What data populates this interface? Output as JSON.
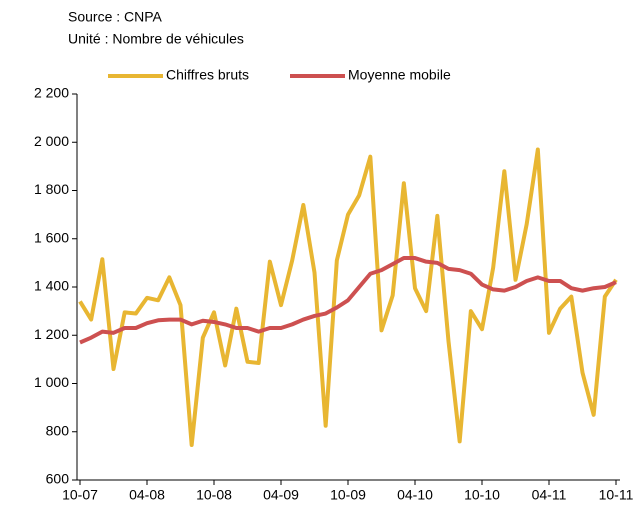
{
  "chart_data": {
    "type": "line",
    "subtitle": [
      "Source : CNPA",
      "Unité : Nombre de véhicules"
    ],
    "categories": [
      "10-07",
      null,
      null,
      null,
      null,
      null,
      "04-08",
      null,
      null,
      null,
      null,
      null,
      "10-08",
      null,
      null,
      null,
      null,
      null,
      "04-09",
      null,
      null,
      null,
      null,
      null,
      "10-09",
      null,
      null,
      null,
      null,
      null,
      "04-10",
      null,
      null,
      null,
      null,
      null,
      "10-10",
      null,
      null,
      null,
      null,
      null,
      "04-11",
      null,
      null,
      null,
      null,
      null,
      "10-11"
    ],
    "series": [
      {
        "name": "Chiffres bruts",
        "color": "#e8b632",
        "values": [
          1340,
          1265,
          1515,
          1060,
          1295,
          1290,
          1355,
          1345,
          1440,
          1325,
          745,
          1190,
          1295,
          1075,
          1310,
          1090,
          1085,
          1505,
          1325,
          1510,
          1740,
          1460,
          825,
          1510,
          1700,
          1780,
          1940,
          1220,
          1365,
          1830,
          1395,
          1300,
          1695,
          1175,
          760,
          1300,
          1225,
          1480,
          1880,
          1430,
          1660,
          1970,
          1210,
          1310,
          1360,
          1045,
          870,
          1360,
          1430
        ]
      },
      {
        "name": "Moyenne mobile",
        "color": "#cd5050",
        "values": [
          1170,
          1190,
          1215,
          1210,
          1230,
          1230,
          1250,
          1262,
          1265,
          1265,
          1245,
          1260,
          1255,
          1245,
          1230,
          1230,
          1215,
          1230,
          1230,
          1245,
          1265,
          1280,
          1290,
          1315,
          1345,
          1400,
          1455,
          1470,
          1495,
          1520,
          1520,
          1505,
          1500,
          1475,
          1470,
          1455,
          1410,
          1390,
          1385,
          1400,
          1425,
          1440,
          1425,
          1425,
          1395,
          1385,
          1395,
          1400,
          1420
        ]
      }
    ],
    "ylim": [
      600,
      2200
    ],
    "yticks": [
      600,
      800,
      {
        "value": 1000,
        "label": "1 000"
      },
      {
        "value": 1200,
        "label": "1 200"
      },
      {
        "value": 1400,
        "label": "1 400"
      },
      {
        "value": 1600,
        "label": "1 600"
      },
      {
        "value": 1800,
        "label": "1 800"
      },
      {
        "value": 2000,
        "label": "2 000"
      },
      {
        "value": 2200,
        "label": "2 200"
      }
    ],
    "legend": "top"
  }
}
